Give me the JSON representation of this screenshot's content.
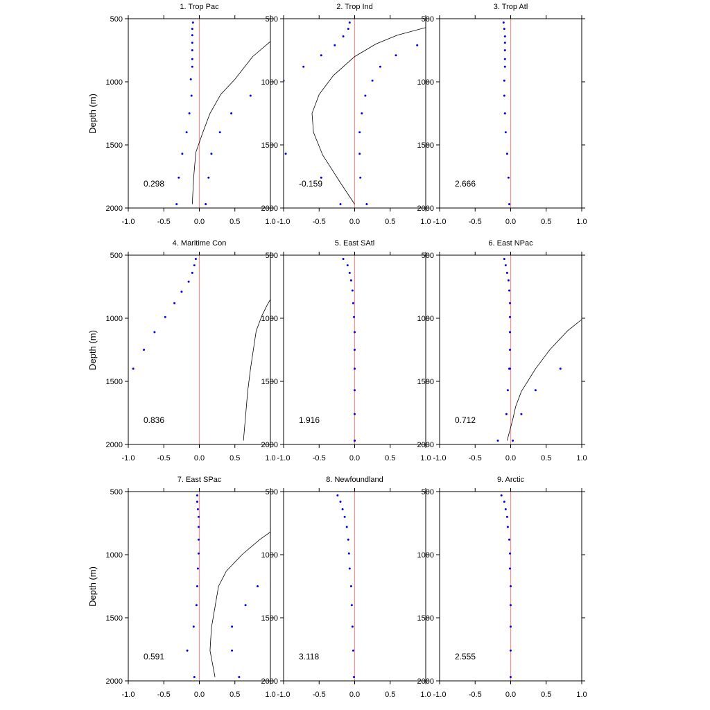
{
  "figure": {
    "ylabel": "Depth (m)"
  },
  "chart_data": [
    {
      "type": "line",
      "title": "1. Trop Pac",
      "annotation": "0.298",
      "xlim": [
        -1.0,
        1.0
      ],
      "ylim": [
        500,
        2000
      ],
      "y_inverted": true,
      "xticks": [
        "-1.0",
        "-0.5",
        "0.0",
        "0.5",
        "1.0"
      ],
      "yticks": [
        "500",
        "1000",
        "1500",
        "2000"
      ],
      "reference_line_x": 0.0,
      "line_series": {
        "x": [
          1.0,
          0.75,
          0.5,
          0.3,
          0.15,
          0.05,
          -0.05,
          -0.08,
          -0.1
        ],
        "y": [
          680,
          800,
          980,
          1100,
          1250,
          1400,
          1560,
          1760,
          1970
        ]
      },
      "dot_series": {
        "x": [
          -0.09,
          -0.1,
          -0.1,
          -0.1,
          -0.1,
          -0.1,
          -0.1,
          -0.12,
          -0.11,
          0.72,
          -0.14,
          0.45,
          -0.18,
          0.29,
          -0.24,
          0.17,
          -0.29,
          0.13,
          -0.32,
          0.09
        ],
        "y": [
          530,
          580,
          630,
          690,
          750,
          820,
          880,
          980,
          1110,
          1110,
          1250,
          1250,
          1400,
          1400,
          1570,
          1570,
          1760,
          1760,
          1970,
          1970
        ]
      }
    },
    {
      "type": "line",
      "title": "2. Trop Ind",
      "annotation": "-0.159",
      "xlim": [
        -1.0,
        1.0
      ],
      "ylim": [
        500,
        2000
      ],
      "y_inverted": true,
      "xticks": [
        "-1.0",
        "-0.5",
        "0.0",
        "0.5",
        "1.0"
      ],
      "yticks": [
        "500",
        "1000",
        "1500",
        "2000"
      ],
      "reference_line_x": 0.0,
      "line_series": {
        "x": [
          1.0,
          0.6,
          0.3,
          0.0,
          -0.3,
          -0.5,
          -0.6,
          -0.58,
          -0.45,
          -0.2,
          0.0
        ],
        "y": [
          570,
          630,
          700,
          800,
          950,
          1100,
          1250,
          1400,
          1580,
          1800,
          1970
        ]
      },
      "dot_series": {
        "x": [
          -0.07,
          -0.09,
          -0.16,
          -0.28,
          -0.47,
          0.58,
          0.88,
          -0.72,
          0.36,
          -1.0,
          0.25,
          0.15,
          0.1,
          0.07,
          -0.97,
          0.07,
          -0.47,
          0.08,
          -0.2,
          0.17
        ],
        "y": [
          530,
          580,
          640,
          710,
          790,
          790,
          710,
          880,
          880,
          990,
          990,
          1110,
          1250,
          1400,
          1570,
          1570,
          1760,
          1760,
          1970,
          1970
        ]
      }
    },
    {
      "type": "line",
      "title": "3. Trop Atl",
      "annotation": "2.666",
      "xlim": [
        -1.0,
        1.0
      ],
      "ylim": [
        500,
        2000
      ],
      "y_inverted": true,
      "xticks": [
        "-1.0",
        "-0.5",
        "0.0",
        "0.5",
        "1.0"
      ],
      "yticks": [
        "500",
        "1000",
        "1500",
        "2000"
      ],
      "reference_line_x": 0.0,
      "line_series": {
        "x": [],
        "y": []
      },
      "dot_series": {
        "x": [
          -0.1,
          -0.09,
          -0.08,
          -0.08,
          -0.08,
          -0.08,
          -0.08,
          -0.09,
          -0.09,
          -0.08,
          -0.07,
          -0.05,
          -0.03,
          -0.02
        ],
        "y": [
          530,
          580,
          640,
          690,
          750,
          820,
          880,
          990,
          1110,
          1250,
          1400,
          1570,
          1760,
          1970
        ]
      }
    },
    {
      "type": "line",
      "title": "4. Maritime Con",
      "annotation": "0.836",
      "xlim": [
        -1.0,
        1.0
      ],
      "ylim": [
        500,
        2000
      ],
      "y_inverted": true,
      "xticks": [
        "-1.0",
        "-0.5",
        "0.0",
        "0.5",
        "1.0"
      ],
      "yticks": [
        "500",
        "1000",
        "1500",
        "2000"
      ],
      "reference_line_x": 0.0,
      "line_series": {
        "x": [
          1.0,
          0.95,
          0.88,
          0.8,
          0.76,
          0.72,
          0.68,
          0.65,
          0.62
        ],
        "y": [
          850,
          900,
          980,
          1100,
          1250,
          1400,
          1580,
          1780,
          1970
        ]
      },
      "dot_series": {
        "x": [
          -0.05,
          -0.07,
          -0.1,
          -0.15,
          -0.25,
          -0.35,
          -0.48,
          -0.63,
          -0.78,
          -0.93
        ],
        "y": [
          530,
          580,
          640,
          710,
          790,
          880,
          990,
          1110,
          1250,
          1400
        ]
      }
    },
    {
      "type": "line",
      "title": "5. East SAtl",
      "annotation": "1.916",
      "xlim": [
        -1.0,
        1.0
      ],
      "ylim": [
        500,
        2000
      ],
      "y_inverted": true,
      "xticks": [
        "-1.0",
        "-0.5",
        "0.0",
        "0.5",
        "1.0"
      ],
      "yticks": [
        "500",
        "1000",
        "1500",
        "2000"
      ],
      "reference_line_x": 0.0,
      "line_series": {
        "x": [],
        "y": []
      },
      "dot_series": {
        "x": [
          -0.16,
          -0.1,
          -0.07,
          -0.05,
          -0.03,
          -0.02,
          -0.01,
          0.0,
          0.0,
          0.0,
          0.0,
          0.0,
          0.0,
          0.0
        ],
        "y": [
          530,
          580,
          640,
          700,
          780,
          880,
          990,
          1110,
          1250,
          1400,
          1570,
          1760,
          1970,
          1970
        ]
      }
    },
    {
      "type": "line",
      "title": "6. East NPac",
      "annotation": "0.712",
      "xlim": [
        -1.0,
        1.0
      ],
      "ylim": [
        500,
        2000
      ],
      "y_inverted": true,
      "xticks": [
        "-1.0",
        "-0.5",
        "0.0",
        "0.5",
        "1.0"
      ],
      "yticks": [
        "500",
        "1000",
        "1500",
        "2000"
      ],
      "reference_line_x": 0.0,
      "line_series": {
        "x": [
          1.0,
          0.8,
          0.55,
          0.35,
          0.15,
          0.07,
          0.03,
          -0.05
        ],
        "y": [
          1010,
          1100,
          1250,
          1400,
          1580,
          1700,
          1800,
          1970
        ]
      },
      "dot_series": {
        "x": [
          -0.09,
          -0.07,
          -0.05,
          -0.03,
          -0.02,
          -0.01,
          -0.01,
          -0.01,
          -0.01,
          -0.01,
          -0.02,
          0.7,
          -0.04,
          0.35,
          -0.06,
          0.15,
          -0.18,
          0.03
        ],
        "y": [
          530,
          580,
          640,
          700,
          780,
          880,
          990,
          1110,
          1250,
          1400,
          1400,
          1400,
          1570,
          1570,
          1760,
          1760,
          1970,
          1970
        ]
      }
    },
    {
      "type": "line",
      "title": "7. East SPac",
      "annotation": "0.591",
      "xlim": [
        -1.0,
        1.0
      ],
      "ylim": [
        500,
        2000
      ],
      "y_inverted": true,
      "xticks": [
        "-1.0",
        "-0.5",
        "0.0",
        "0.5",
        "1.0"
      ],
      "yticks": [
        "500",
        "1000",
        "1500",
        "2000"
      ],
      "reference_line_x": 0.0,
      "line_series": {
        "x": [
          1.0,
          0.85,
          0.6,
          0.38,
          0.27,
          0.17,
          0.15,
          0.22
        ],
        "y": [
          820,
          880,
          1000,
          1130,
          1250,
          1580,
          1760,
          1970
        ]
      },
      "dot_series": {
        "x": [
          -0.03,
          -0.03,
          -0.02,
          -0.01,
          -0.01,
          -0.01,
          -0.01,
          -0.02,
          -0.03,
          0.82,
          -0.04,
          0.65,
          -0.08,
          0.46,
          -0.17,
          0.46,
          -0.07,
          0.56
        ],
        "y": [
          530,
          580,
          640,
          700,
          780,
          880,
          990,
          1110,
          1250,
          1250,
          1400,
          1400,
          1570,
          1570,
          1760,
          1760,
          1970,
          1970
        ]
      }
    },
    {
      "type": "line",
      "title": "8. Newfoundland",
      "annotation": "3.118",
      "xlim": [
        -1.0,
        1.0
      ],
      "ylim": [
        500,
        2000
      ],
      "y_inverted": true,
      "xticks": [
        "-1.0",
        "-0.5",
        "0.0",
        "0.5",
        "1.0"
      ],
      "yticks": [
        "500",
        "1000",
        "1500",
        "2000"
      ],
      "reference_line_x": 0.0,
      "line_series": {
        "x": [],
        "y": []
      },
      "dot_series": {
        "x": [
          -0.24,
          -0.2,
          -0.17,
          -0.14,
          -0.11,
          -0.09,
          -0.08,
          -0.07,
          -0.05,
          -0.04,
          -0.03,
          -0.02,
          -0.01
        ],
        "y": [
          530,
          580,
          640,
          700,
          780,
          880,
          990,
          1110,
          1250,
          1400,
          1570,
          1760,
          1970
        ]
      }
    },
    {
      "type": "line",
      "title": "9. Arctic",
      "annotation": "2.555",
      "xlim": [
        -1.0,
        1.0
      ],
      "ylim": [
        500,
        2000
      ],
      "y_inverted": true,
      "xticks": [
        "-1.0",
        "-0.5",
        "0.0",
        "0.5",
        "1.0"
      ],
      "yticks": [
        "500",
        "1000",
        "1500",
        "2000"
      ],
      "reference_line_x": 0.0,
      "line_series": {
        "x": [],
        "y": []
      },
      "dot_series": {
        "x": [
          -0.13,
          -0.09,
          -0.07,
          -0.05,
          -0.04,
          -0.02,
          -0.01,
          -0.01,
          0.0,
          0.0,
          0.0,
          0.0,
          0.0
        ],
        "y": [
          530,
          580,
          640,
          700,
          780,
          880,
          990,
          1110,
          1250,
          1400,
          1570,
          1760,
          1970
        ]
      }
    }
  ],
  "colors": {
    "dots": "#0000ee",
    "reference_line": "#ff9090",
    "profile_line": "#000000",
    "axes": "#000000"
  }
}
